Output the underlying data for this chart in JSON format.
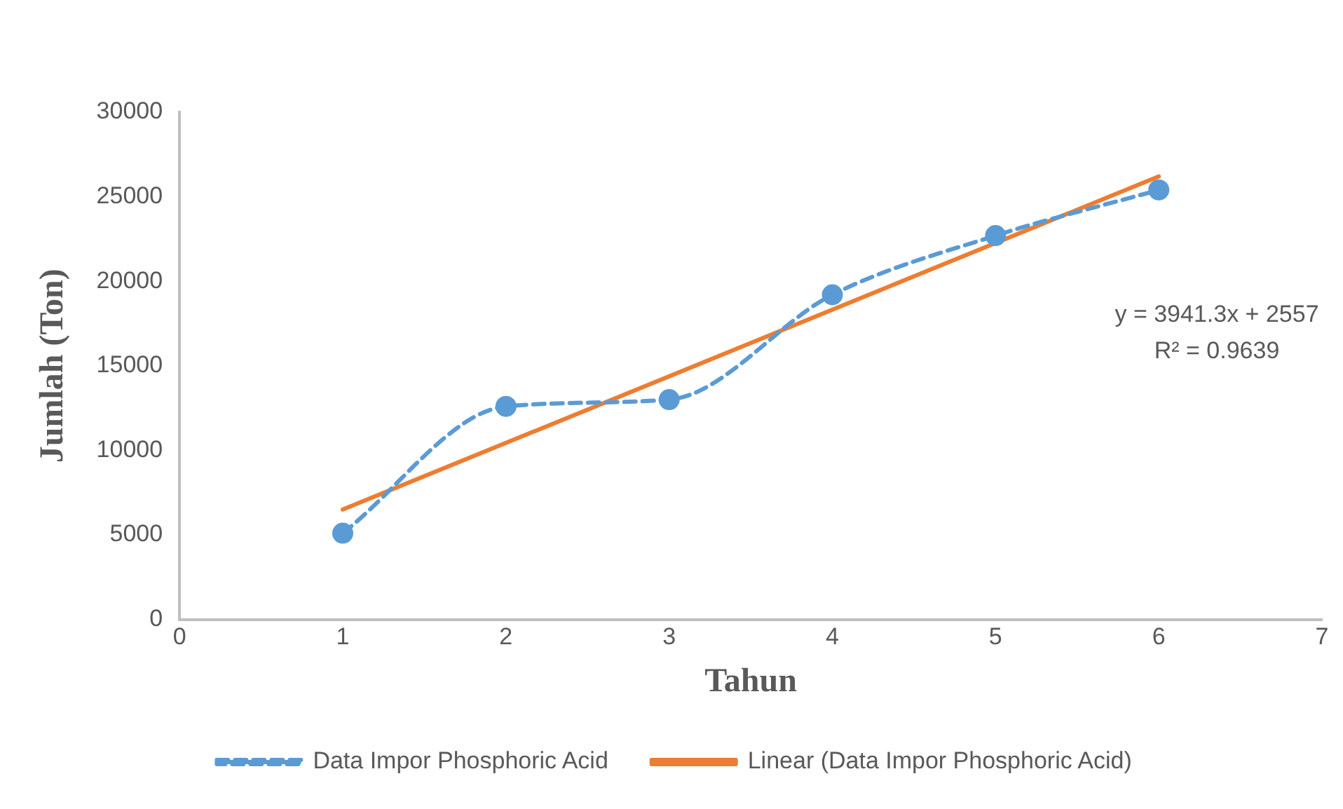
{
  "chart_data": {
    "type": "line",
    "xlabel": "Tahun",
    "ylabel": "Jumlah (Ton)",
    "xlim": [
      0,
      7
    ],
    "xticks": [
      0,
      1,
      2,
      3,
      4,
      5,
      6,
      7
    ],
    "ylim": [
      0,
      30000
    ],
    "yticks": [
      0,
      5000,
      10000,
      15000,
      20000,
      25000,
      30000
    ],
    "grid": false,
    "legend": "bottom",
    "series": [
      {
        "name": "Data Impor Phosphoric Acid",
        "color": "#5b9bd5",
        "x": [
          1,
          2,
          3,
          4,
          5,
          6
        ],
        "values": [
          5100,
          12600,
          13000,
          19200,
          22700,
          25400
        ],
        "marker": "circle",
        "line_style": "dashed"
      },
      {
        "name": "Linear (Data Impor Phosphoric Acid)",
        "type": "line",
        "color": "#ed7d31",
        "x": [
          1,
          6
        ],
        "values": [
          6500,
          26200
        ],
        "marker": "none",
        "line_style": "solid"
      }
    ],
    "annotations": [
      "y = 3941.3x + 2557",
      "R² = 0.9639"
    ]
  }
}
